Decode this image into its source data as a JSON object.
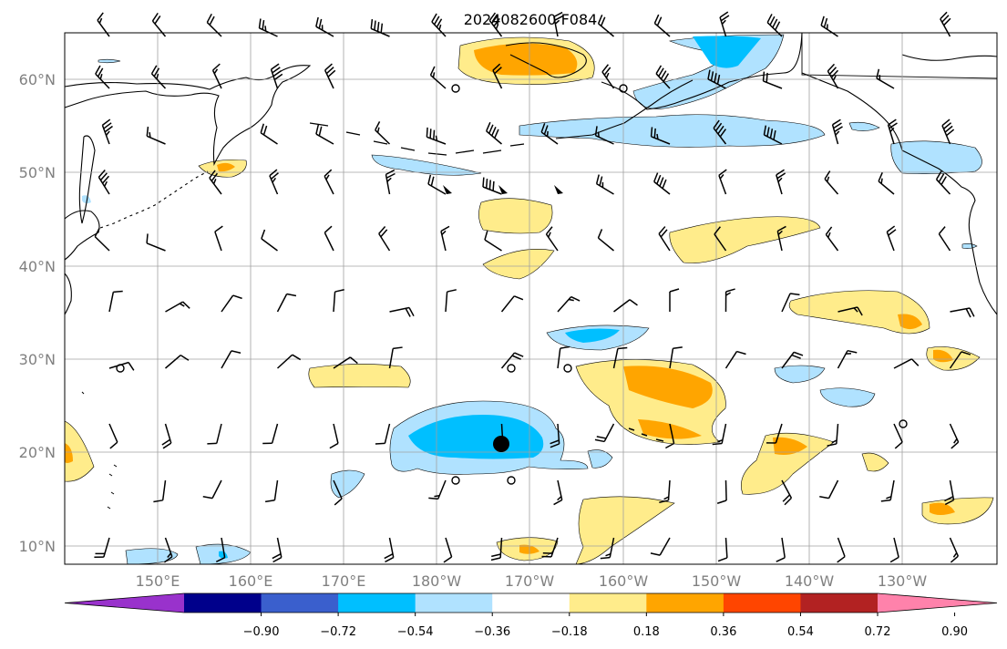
{
  "title": "2024082600 F084",
  "map": {
    "lon_labels": [
      "150°E",
      "160°E",
      "170°E",
      "180°W",
      "170°W",
      "160°W",
      "150°W",
      "140°W",
      "130°W"
    ],
    "lat_labels": [
      "60°N",
      "50°N",
      "40°N",
      "30°N",
      "20°N",
      "10°N"
    ],
    "grid": true
  },
  "colorbar": {
    "ticks": [
      "−0.90",
      "−0.72",
      "−0.54",
      "−0.36",
      "−0.18",
      "0.18",
      "0.36",
      "0.54",
      "0.72",
      "0.90"
    ],
    "colors": [
      "#9932cc",
      "#00008b",
      "#3a5fcd",
      "#00bfff",
      "#b0e2ff",
      "#ffffff",
      "#ffec8b",
      "#ffa500",
      "#ff4500",
      "#b22222",
      "#ff82ab"
    ]
  },
  "colors": {
    "gridline": "#a0a0a0",
    "coastline": "#000000",
    "tick_label": "#808080"
  }
}
